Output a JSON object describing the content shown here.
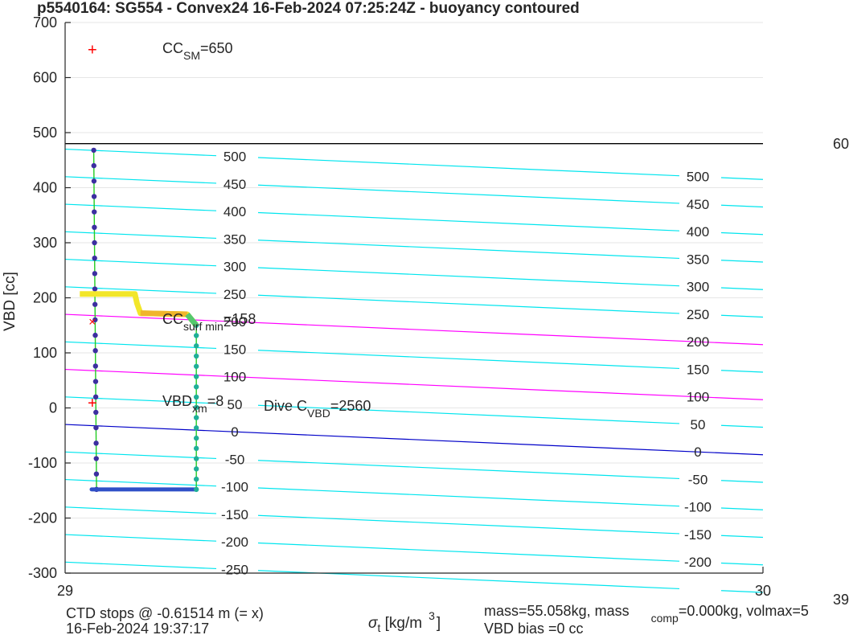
{
  "title": "p5540164: SG554 - Convex24 16-Feb-2024 07:25:24Z - buoyancy contoured",
  "xlabel": {
    "sym": "σ",
    "sub": "t",
    "unit": " [kg/m",
    "sup": "3",
    "close": "]"
  },
  "ylabel": "VBD [cc]",
  "annotations": {
    "cc_sm": {
      "base": "CC",
      "sub": "SM",
      "rest": "=650"
    },
    "cc_surf": {
      "base": "CC",
      "sub": "surf min",
      "rest": "=158"
    },
    "vbd_xm": {
      "base": "VBD",
      "sub": "xm",
      "rest": "=8"
    },
    "dive_c": {
      "base": "Dive C",
      "sub": "VBD",
      "rest": "=2560"
    }
  },
  "footer": {
    "ctd": "CTD stops @ -0.61514 m (= x)",
    "date": "16-Feb-2024 19:37:17",
    "mass": "mass=55.058kg, mass",
    "mass_sub": "comp",
    "mass_rest": "=0.000kg, volmax=5",
    "vbd_bias": "VBD bias =0 cc"
  },
  "right_edge": {
    "top": "60",
    "bottom": "39"
  },
  "colors": {
    "contour": "#00e5ee",
    "magenta": "#ff00ff",
    "blue": "#0000c8",
    "profile": "#22cc22",
    "marker": "#ff0000",
    "grid": "#e6e6e6"
  },
  "chart_data": {
    "type": "scatter",
    "title": "p5540164: SG554 - Convex24 16-Feb-2024 07:25:24Z - buoyancy contoured",
    "xlabel": "σt [kg/m3]",
    "ylabel": "VBD [cc]",
    "xlim": [
      29,
      30
    ],
    "ylim": [
      -300,
      700
    ],
    "xticks": [
      29,
      30
    ],
    "yticks": [
      -300,
      -200,
      -100,
      0,
      100,
      200,
      300,
      400,
      500,
      600,
      700
    ],
    "grid": true,
    "hline": 480,
    "contours": [
      {
        "label": "-250",
        "y0": -280,
        "slope": -55,
        "left_label": "-250",
        "right_label": ""
      },
      {
        "label": "-200",
        "y0": -230,
        "slope": -55,
        "left_label": "-200",
        "right_label": "-200"
      },
      {
        "label": "-150",
        "y0": -180,
        "slope": -55,
        "left_label": "-150",
        "right_label": "-150"
      },
      {
        "label": "-100",
        "y0": -130,
        "slope": -55,
        "left_label": "-100",
        "right_label": "-100"
      },
      {
        "label": "-50",
        "y0": -80,
        "slope": -55,
        "left_label": "-50",
        "right_label": "-50"
      },
      {
        "label": "0",
        "y0": -30,
        "slope": -55,
        "left_label": "0",
        "right_label": "0",
        "style": "blue"
      },
      {
        "label": "50",
        "y0": 20,
        "slope": -55,
        "left_label": "50",
        "right_label": "50"
      },
      {
        "label": "100",
        "y0": 70,
        "slope": -55,
        "left_label": "100",
        "right_label": "100",
        "style": "magenta"
      },
      {
        "label": "150",
        "y0": 120,
        "slope": -55,
        "left_label": "150",
        "right_label": "150"
      },
      {
        "label": "200",
        "y0": 170,
        "slope": -55,
        "left_label": "200",
        "right_label": "200",
        "style": "magenta"
      },
      {
        "label": "250",
        "y0": 220,
        "slope": -55,
        "left_label": "250",
        "right_label": "250"
      },
      {
        "label": "300",
        "y0": 270,
        "slope": -55,
        "left_label": "300",
        "right_label": "300"
      },
      {
        "label": "350",
        "y0": 320,
        "slope": -55,
        "left_label": "350",
        "right_label": "350"
      },
      {
        "label": "400",
        "y0": 370,
        "slope": -55,
        "left_label": "400",
        "right_label": "400"
      },
      {
        "label": "450",
        "y0": 420,
        "slope": -55,
        "left_label": "450",
        "right_label": "450"
      },
      {
        "label": "500",
        "y0": 470,
        "slope": -55,
        "left_label": "500",
        "right_label": "500"
      }
    ],
    "markers": [
      {
        "name": "cc-sm-marker",
        "symbol": "+",
        "x": 29.039,
        "y": 650
      },
      {
        "name": "cc-surf-marker",
        "symbol": "x",
        "x": 29.039,
        "y": 158
      },
      {
        "name": "vbd-xm-marker",
        "symbol": "+",
        "x": 29.039,
        "y": 8
      }
    ],
    "descent": {
      "x": [
        29.041,
        29.045
      ],
      "y": [
        468,
        -148
      ]
    },
    "bottom": {
      "x": [
        29.038,
        29.188
      ],
      "y": -148
    },
    "ascent": {
      "x": 29.188,
      "y": [
        -148,
        150
      ]
    },
    "surface_steps": [
      {
        "x": 29.021,
        "y": 207
      },
      {
        "x": 29.1,
        "y": 207
      },
      {
        "x": 29.103,
        "y": 190
      },
      {
        "x": 29.108,
        "y": 172
      },
      {
        "x": 29.175,
        "y": 170
      },
      {
        "x": 29.188,
        "y": 150
      }
    ]
  }
}
